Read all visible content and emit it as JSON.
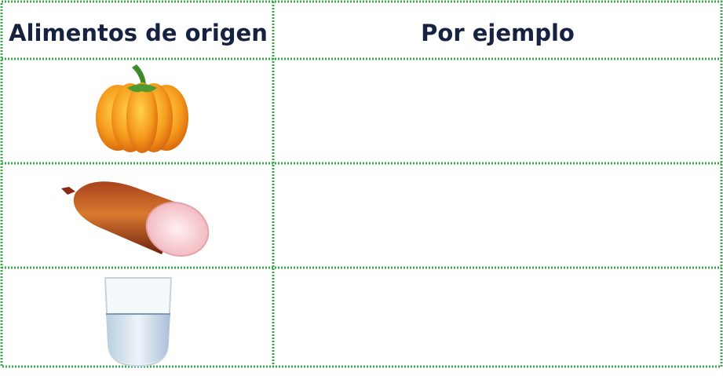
{
  "table": {
    "header": [
      "Alimentos de origen",
      "Por ejemplo"
    ]
  }
}
